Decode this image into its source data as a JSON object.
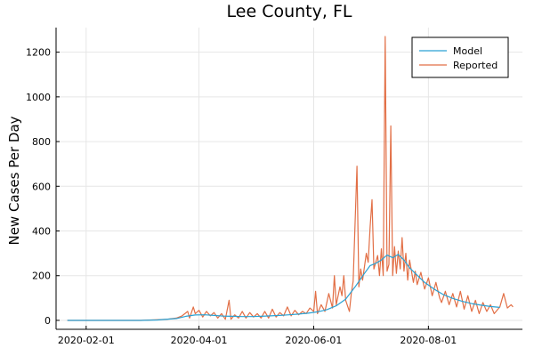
{
  "chart_data": {
    "type": "line",
    "title": "Lee County, FL",
    "xlabel": "",
    "ylabel": "New Cases Per Day",
    "x_start": "2020-01-22",
    "x_end": "2020-09-15",
    "xlim": [
      "2020-01-16",
      "2020-09-20"
    ],
    "ylim": [
      -40,
      1310
    ],
    "x_ticks": [
      "2020-02-01",
      "2020-04-01",
      "2020-06-01",
      "2020-08-01"
    ],
    "y_ticks": [
      0,
      200,
      400,
      600,
      800,
      1000,
      1200
    ],
    "grid": true,
    "legend_position": "top-right",
    "series": [
      {
        "name": "Model",
        "color": "#2aa1d3",
        "points": [
          [
            "2020-01-22",
            0
          ],
          [
            "2020-03-01",
            0
          ],
          [
            "2020-03-10",
            2
          ],
          [
            "2020-03-20",
            8
          ],
          [
            "2020-03-25",
            18
          ],
          [
            "2020-03-30",
            24
          ],
          [
            "2020-04-04",
            25
          ],
          [
            "2020-04-09",
            22
          ],
          [
            "2020-04-14",
            19
          ],
          [
            "2020-04-19",
            18
          ],
          [
            "2020-04-24",
            17
          ],
          [
            "2020-04-29",
            17
          ],
          [
            "2020-05-04",
            18
          ],
          [
            "2020-05-09",
            20
          ],
          [
            "2020-05-14",
            22
          ],
          [
            "2020-05-19",
            25
          ],
          [
            "2020-05-24",
            28
          ],
          [
            "2020-05-29",
            32
          ],
          [
            "2020-06-03",
            38
          ],
          [
            "2020-06-08",
            48
          ],
          [
            "2020-06-13",
            65
          ],
          [
            "2020-06-18",
            95
          ],
          [
            "2020-06-23",
            150
          ],
          [
            "2020-06-28",
            210
          ],
          [
            "2020-07-01",
            245
          ],
          [
            "2020-07-04",
            255
          ],
          [
            "2020-07-07",
            270
          ],
          [
            "2020-07-10",
            292
          ],
          [
            "2020-07-13",
            280
          ],
          [
            "2020-07-16",
            295
          ],
          [
            "2020-07-19",
            270
          ],
          [
            "2020-07-22",
            235
          ],
          [
            "2020-07-25",
            210
          ],
          [
            "2020-07-30",
            170
          ],
          [
            "2020-08-04",
            140
          ],
          [
            "2020-08-09",
            115
          ],
          [
            "2020-08-14",
            98
          ],
          [
            "2020-08-19",
            85
          ],
          [
            "2020-08-24",
            75
          ],
          [
            "2020-08-29",
            68
          ],
          [
            "2020-09-03",
            62
          ],
          [
            "2020-09-08",
            58
          ]
        ]
      },
      {
        "name": "Reported",
        "color": "#e26f46",
        "points": [
          [
            "2020-01-22",
            0
          ],
          [
            "2020-03-01",
            0
          ],
          [
            "2020-03-10",
            3
          ],
          [
            "2020-03-15",
            5
          ],
          [
            "2020-03-20",
            10
          ],
          [
            "2020-03-23",
            20
          ],
          [
            "2020-03-26",
            40
          ],
          [
            "2020-03-27",
            10
          ],
          [
            "2020-03-29",
            60
          ],
          [
            "2020-03-30",
            30
          ],
          [
            "2020-04-01",
            45
          ],
          [
            "2020-04-03",
            15
          ],
          [
            "2020-04-05",
            40
          ],
          [
            "2020-04-07",
            20
          ],
          [
            "2020-04-09",
            35
          ],
          [
            "2020-04-11",
            10
          ],
          [
            "2020-04-13",
            30
          ],
          [
            "2020-04-15",
            5
          ],
          [
            "2020-04-17",
            90
          ],
          [
            "2020-04-18",
            5
          ],
          [
            "2020-04-20",
            25
          ],
          [
            "2020-04-22",
            10
          ],
          [
            "2020-04-24",
            40
          ],
          [
            "2020-04-26",
            10
          ],
          [
            "2020-04-28",
            35
          ],
          [
            "2020-04-30",
            15
          ],
          [
            "2020-05-02",
            30
          ],
          [
            "2020-05-04",
            10
          ],
          [
            "2020-05-06",
            40
          ],
          [
            "2020-05-08",
            10
          ],
          [
            "2020-05-10",
            50
          ],
          [
            "2020-05-12",
            15
          ],
          [
            "2020-05-14",
            35
          ],
          [
            "2020-05-16",
            20
          ],
          [
            "2020-05-18",
            60
          ],
          [
            "2020-05-20",
            20
          ],
          [
            "2020-05-22",
            45
          ],
          [
            "2020-05-24",
            25
          ],
          [
            "2020-05-26",
            40
          ],
          [
            "2020-05-28",
            30
          ],
          [
            "2020-05-30",
            55
          ],
          [
            "2020-06-01",
            40
          ],
          [
            "2020-06-02",
            130
          ],
          [
            "2020-06-03",
            30
          ],
          [
            "2020-06-05",
            70
          ],
          [
            "2020-06-07",
            40
          ],
          [
            "2020-06-09",
            120
          ],
          [
            "2020-06-11",
            55
          ],
          [
            "2020-06-12",
            200
          ],
          [
            "2020-06-13",
            70
          ],
          [
            "2020-06-15",
            150
          ],
          [
            "2020-06-16",
            110
          ],
          [
            "2020-06-17",
            200
          ],
          [
            "2020-06-18",
            90
          ],
          [
            "2020-06-20",
            40
          ],
          [
            "2020-06-21",
            120
          ],
          [
            "2020-06-22",
            175
          ],
          [
            "2020-06-24",
            690
          ],
          [
            "2020-06-25",
            150
          ],
          [
            "2020-06-26",
            230
          ],
          [
            "2020-06-27",
            180
          ],
          [
            "2020-06-29",
            300
          ],
          [
            "2020-06-30",
            260
          ],
          [
            "2020-07-01",
            420
          ],
          [
            "2020-07-02",
            540
          ],
          [
            "2020-07-03",
            230
          ],
          [
            "2020-07-04",
            260
          ],
          [
            "2020-07-05",
            290
          ],
          [
            "2020-07-06",
            200
          ],
          [
            "2020-07-07",
            320
          ],
          [
            "2020-07-08",
            200
          ],
          [
            "2020-07-09",
            1270
          ],
          [
            "2020-07-10",
            220
          ],
          [
            "2020-07-11",
            250
          ],
          [
            "2020-07-12",
            870
          ],
          [
            "2020-07-13",
            200
          ],
          [
            "2020-07-14",
            330
          ],
          [
            "2020-07-15",
            210
          ],
          [
            "2020-07-16",
            310
          ],
          [
            "2020-07-17",
            230
          ],
          [
            "2020-07-18",
            370
          ],
          [
            "2020-07-19",
            220
          ],
          [
            "2020-07-20",
            300
          ],
          [
            "2020-07-21",
            180
          ],
          [
            "2020-07-22",
            270
          ],
          [
            "2020-07-24",
            170
          ],
          [
            "2020-07-25",
            220
          ],
          [
            "2020-07-26",
            160
          ],
          [
            "2020-07-28",
            215
          ],
          [
            "2020-07-30",
            140
          ],
          [
            "2020-08-01",
            190
          ],
          [
            "2020-08-03",
            110
          ],
          [
            "2020-08-05",
            170
          ],
          [
            "2020-08-07",
            100
          ],
          [
            "2020-08-08",
            80
          ],
          [
            "2020-08-10",
            130
          ],
          [
            "2020-08-12",
            70
          ],
          [
            "2020-08-14",
            120
          ],
          [
            "2020-08-16",
            60
          ],
          [
            "2020-08-18",
            130
          ],
          [
            "2020-08-20",
            50
          ],
          [
            "2020-08-22",
            110
          ],
          [
            "2020-08-24",
            40
          ],
          [
            "2020-08-26",
            90
          ],
          [
            "2020-08-28",
            30
          ],
          [
            "2020-08-30",
            80
          ],
          [
            "2020-09-01",
            40
          ],
          [
            "2020-09-03",
            70
          ],
          [
            "2020-09-05",
            30
          ],
          [
            "2020-09-08",
            60
          ],
          [
            "2020-09-10",
            120
          ],
          [
            "2020-09-12",
            55
          ],
          [
            "2020-09-14",
            70
          ],
          [
            "2020-09-15",
            60
          ]
        ]
      }
    ]
  }
}
